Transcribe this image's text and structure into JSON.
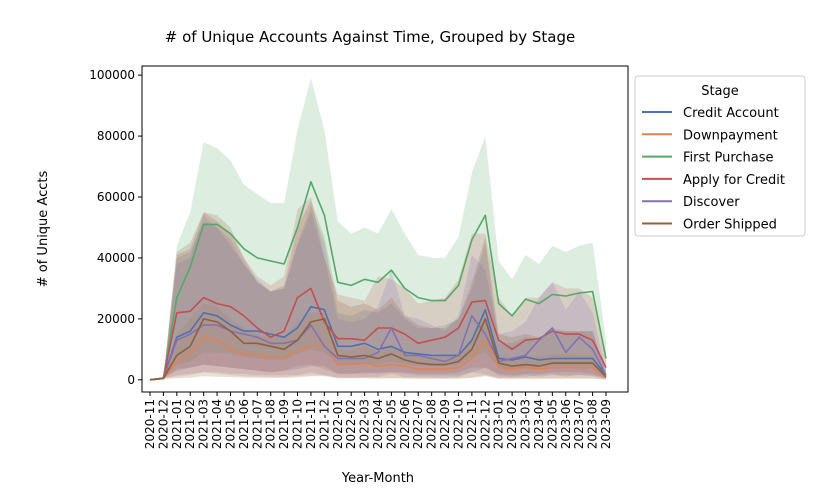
{
  "chart_data": {
    "type": "line",
    "title": "# of Unique Accounts Against Time, Grouped by Stage",
    "xlabel": "Year-Month",
    "ylabel": "# of Unique Accts",
    "ylim": [
      -4000,
      103000
    ],
    "yticks": [
      0,
      20000,
      40000,
      60000,
      80000,
      100000
    ],
    "ytick_labels": [
      "0",
      "20000",
      "40000",
      "60000",
      "80000",
      "100000"
    ],
    "grid": false,
    "categories": [
      "2020-11",
      "2020-12",
      "2021-01",
      "2021-02",
      "2021-03",
      "2021-04",
      "2021-05",
      "2021-06",
      "2021-07",
      "2021-08",
      "2021-09",
      "2021-10",
      "2021-11",
      "2021-12",
      "2022-01",
      "2022-02",
      "2022-03",
      "2022-04",
      "2022-05",
      "2022-06",
      "2022-07",
      "2022-08",
      "2022-09",
      "2022-10",
      "2022-11",
      "2022-12",
      "2023-01",
      "2023-02",
      "2023-03",
      "2023-04",
      "2023-05",
      "2023-06",
      "2023-07",
      "2023-08",
      "2023-09"
    ],
    "legend": {
      "title": "Stage",
      "placement": "upper-right-outside"
    },
    "series": [
      {
        "name": "Credit Account",
        "color": "#4c72b0",
        "values": [
          0,
          500,
          14000,
          16000,
          22000,
          21000,
          18000,
          16000,
          16000,
          15000,
          14000,
          17000,
          24000,
          23000,
          11000,
          11000,
          12000,
          10000,
          11000,
          9000,
          8500,
          8000,
          8000,
          8000,
          13000,
          23000,
          7000,
          6500,
          7500,
          6500,
          7000,
          7000,
          7000,
          7000,
          1500
        ],
        "upper": [
          0,
          600,
          40000,
          42000,
          52000,
          50000,
          46000,
          38000,
          32000,
          29000,
          30000,
          45000,
          57000,
          45000,
          22000,
          21000,
          23000,
          22000,
          25000,
          20000,
          17000,
          17000,
          18000,
          20000,
          30000,
          45000,
          12000,
          12000,
          14000,
          13000,
          17000,
          16000,
          16000,
          16000,
          2500
        ],
        "lower": [
          0,
          400,
          3000,
          4000,
          5000,
          4500,
          4000,
          3500,
          3000,
          2500,
          3000,
          3500,
          4500,
          4500,
          2000,
          2000,
          2500,
          2000,
          2500,
          2000,
          1500,
          1500,
          1500,
          1500,
          2500,
          4000,
          1500,
          1000,
          1500,
          1000,
          1500,
          1500,
          1500,
          1500,
          500
        ]
      },
      {
        "name": "Downpayment",
        "color": "#dd8452",
        "values": [
          0,
          400,
          6000,
          8500,
          14000,
          13000,
          10000,
          8500,
          8500,
          7500,
          7500,
          9500,
          11000,
          11500,
          5000,
          5000,
          5500,
          4500,
          5000,
          4500,
          3500,
          3500,
          3500,
          4000,
          7000,
          13000,
          4000,
          3500,
          4000,
          3500,
          4000,
          4000,
          4000,
          4000,
          700
        ],
        "upper": [
          0,
          500,
          15000,
          20000,
          25000,
          24000,
          20000,
          17000,
          15000,
          14000,
          14000,
          19000,
          22000,
          22000,
          10000,
          10000,
          11000,
          9500,
          10500,
          9500,
          8000,
          7500,
          7500,
          8000,
          13000,
          23000,
          8000,
          7500,
          8000,
          7500,
          8500,
          8500,
          8000,
          8000,
          1200
        ],
        "lower": [
          0,
          300,
          1000,
          1500,
          2500,
          2000,
          1500,
          1200,
          1000,
          900,
          900,
          1200,
          1500,
          1500,
          600,
          600,
          700,
          600,
          700,
          600,
          500,
          500,
          500,
          500,
          800,
          1500,
          500,
          450,
          500,
          450,
          500,
          500,
          500,
          500,
          150
        ]
      },
      {
        "name": "First Purchase",
        "color": "#55a868",
        "values": [
          0,
          600,
          27000,
          37000,
          51000,
          51000,
          48000,
          43000,
          40000,
          39000,
          38000,
          50000,
          65000,
          54000,
          32000,
          31000,
          33000,
          32000,
          36000,
          30000,
          27000,
          26000,
          26000,
          31000,
          46000,
          54000,
          25000,
          21000,
          26500,
          25000,
          28000,
          27500,
          28500,
          29000,
          7000
        ],
        "upper": [
          0,
          700,
          44000,
          55000,
          78000,
          76000,
          72000,
          64000,
          61000,
          58000,
          58000,
          82000,
          99000,
          82000,
          52000,
          48000,
          50000,
          48000,
          56000,
          48000,
          41000,
          40000,
          40000,
          47000,
          68000,
          80000,
          39000,
          33000,
          41000,
          38000,
          44000,
          42000,
          44000,
          45000,
          13000
        ],
        "lower": [
          0,
          500,
          5000,
          6000,
          9000,
          9000,
          8500,
          7500,
          7000,
          6500,
          6500,
          8500,
          10000,
          9000,
          5000,
          5000,
          5500,
          5000,
          6000,
          5000,
          4500,
          4500,
          4500,
          5000,
          7500,
          9000,
          4000,
          3500,
          4000,
          4000,
          4500,
          4500,
          4500,
          4500,
          1000
        ]
      },
      {
        "name": "Apply for Credit",
        "color": "#c44e52",
        "values": [
          0,
          500,
          22000,
          22500,
          27000,
          25000,
          24000,
          21000,
          17000,
          14000,
          16000,
          27000,
          30000,
          19000,
          13500,
          13500,
          13000,
          17000,
          17000,
          15000,
          12000,
          13000,
          14000,
          17000,
          25500,
          26000,
          13000,
          10000,
          13000,
          13500,
          16000,
          15000,
          15000,
          13000,
          4000
        ],
        "upper": [
          0,
          600,
          41000,
          43000,
          55000,
          52000,
          48000,
          40000,
          34000,
          31000,
          34000,
          56000,
          60000,
          40000,
          28000,
          27000,
          26000,
          34000,
          33000,
          30000,
          25000,
          26000,
          27000,
          33000,
          48000,
          48000,
          27000,
          21000,
          27000,
          27000,
          32000,
          30000,
          30000,
          27000,
          8000
        ],
        "lower": [
          0,
          400,
          3500,
          4000,
          5000,
          4500,
          4000,
          3500,
          3000,
          2500,
          3000,
          4500,
          5000,
          3500,
          2000,
          2000,
          2000,
          2500,
          2500,
          2500,
          2000,
          2000,
          2000,
          2500,
          4000,
          4000,
          2000,
          1500,
          2000,
          2000,
          2500,
          2500,
          2500,
          2000,
          500
        ]
      },
      {
        "name": "Discover",
        "color": "#8172b3",
        "values": [
          0,
          500,
          13000,
          15000,
          18000,
          18000,
          16000,
          15000,
          14000,
          12000,
          12000,
          13000,
          18000,
          11000,
          7000,
          7000,
          7000,
          9000,
          17000,
          8000,
          8000,
          7000,
          6000,
          8000,
          21000,
          15000,
          6000,
          7000,
          8000,
          13000,
          17000,
          9000,
          14000,
          10000,
          1500
        ],
        "upper": [
          0,
          600,
          38000,
          40000,
          54000,
          50000,
          44000,
          38000,
          33000,
          29000,
          30000,
          44000,
          55000,
          40000,
          20000,
          19000,
          20000,
          24000,
          36000,
          21000,
          20000,
          18000,
          16000,
          21000,
          41000,
          36000,
          15000,
          16000,
          19000,
          27000,
          32000,
          23000,
          29000,
          22000,
          3000
        ],
        "lower": [
          0,
          400,
          1500,
          2000,
          2500,
          2500,
          2000,
          2000,
          1500,
          1500,
          1500,
          1500,
          2500,
          1500,
          800,
          800,
          800,
          1000,
          2000,
          900,
          900,
          800,
          700,
          900,
          2500,
          1800,
          700,
          800,
          900,
          1500,
          2000,
          1000,
          1600,
          1200,
          200
        ]
      },
      {
        "name": "Order Shipped",
        "color": "#8c613c",
        "values": [
          0,
          500,
          8000,
          11000,
          20000,
          19000,
          16000,
          12000,
          12000,
          11000,
          10000,
          13000,
          19000,
          20000,
          8000,
          7500,
          8000,
          7000,
          8500,
          6500,
          5500,
          5000,
          5000,
          6000,
          10000,
          20000,
          5500,
          4500,
          5000,
          4500,
          5500,
          5500,
          5500,
          5500,
          1000
        ],
        "upper": [
          0,
          600,
          42000,
          45000,
          55000,
          54000,
          50000,
          40000,
          32000,
          29000,
          31000,
          50000,
          59000,
          47000,
          26000,
          24000,
          25000,
          23000,
          27000,
          21000,
          18000,
          17000,
          17000,
          20000,
          32000,
          47000,
          15000,
          14000,
          15000,
          14000,
          16000,
          16000,
          16000,
          16000,
          2000
        ],
        "lower": [
          0,
          400,
          500,
          700,
          1200,
          1000,
          900,
          700,
          700,
          600,
          600,
          800,
          1200,
          1200,
          500,
          450,
          500,
          400,
          500,
          400,
          300,
          300,
          300,
          350,
          600,
          1200,
          350,
          300,
          300,
          300,
          350,
          350,
          350,
          350,
          100
        ]
      }
    ]
  }
}
